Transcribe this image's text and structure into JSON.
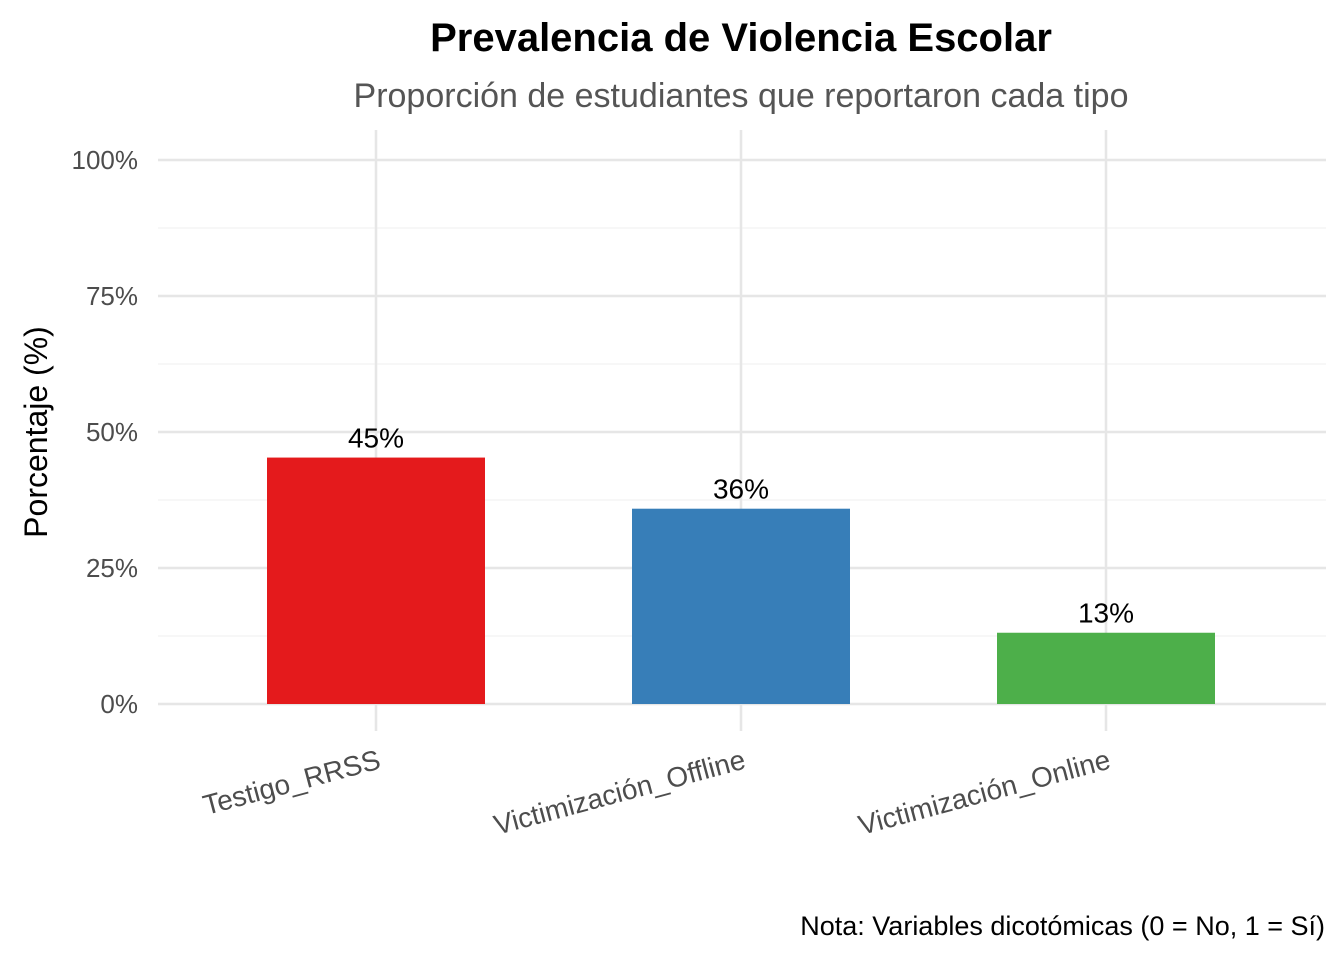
{
  "chart_data": {
    "type": "bar",
    "title": "Prevalencia de Violencia Escolar",
    "subtitle": "Proporción de estudiantes que reportaron cada tipo",
    "xlabel": "",
    "ylabel": "Porcentaje (%)",
    "categories": [
      "Testigo_RRSS",
      "Victimización_Offline",
      "Victimización_Online"
    ],
    "values": [
      45.3,
      35.9,
      13.1
    ],
    "data_labels": [
      "45%",
      "36%",
      "13%"
    ],
    "colors": [
      "#e41a1c",
      "#377eb8",
      "#4daf4a"
    ],
    "ylim": [
      0,
      100
    ],
    "yticks": [
      0,
      25,
      50,
      75,
      100
    ],
    "ytick_labels": [
      "0%",
      "25%",
      "50%",
      "75%",
      "100%"
    ],
    "grid": true,
    "legend": "none",
    "caption": "Nota: Variables dicotómicas (0 = No, 1 = Sí)"
  }
}
